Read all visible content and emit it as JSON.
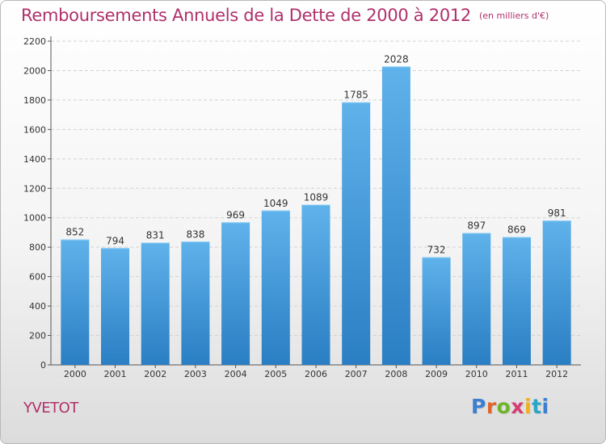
{
  "header": {
    "title": "Remboursements Annuels de la Dette de 2000 à 2012",
    "unit": "(en milliers d'€)"
  },
  "footer": {
    "city": "YVETOT",
    "brand": [
      "P",
      "r",
      "o",
      "x",
      "i",
      "t",
      "i"
    ]
  },
  "colors": {
    "title": "#b0306b",
    "bar_top": "#5fb2ea",
    "bar_bottom": "#2a7ec3",
    "axis": "#555555"
  },
  "chart_data": {
    "type": "bar",
    "title": "Remboursements Annuels de la Dette de 2000 à 2012",
    "xlabel": "",
    "ylabel": "",
    "categories": [
      "2000",
      "2001",
      "2002",
      "2003",
      "2004",
      "2005",
      "2006",
      "2007",
      "2008",
      "2009",
      "2010",
      "2011",
      "2012"
    ],
    "values": [
      852,
      794,
      831,
      838,
      969,
      1049,
      1089,
      1785,
      2028,
      732,
      897,
      869,
      981
    ],
    "ylim": [
      0,
      2200
    ],
    "yticks": [
      0,
      200,
      400,
      600,
      800,
      1000,
      1200,
      1400,
      1600,
      1800,
      2000,
      2200
    ],
    "grid": true,
    "legend": "none"
  }
}
